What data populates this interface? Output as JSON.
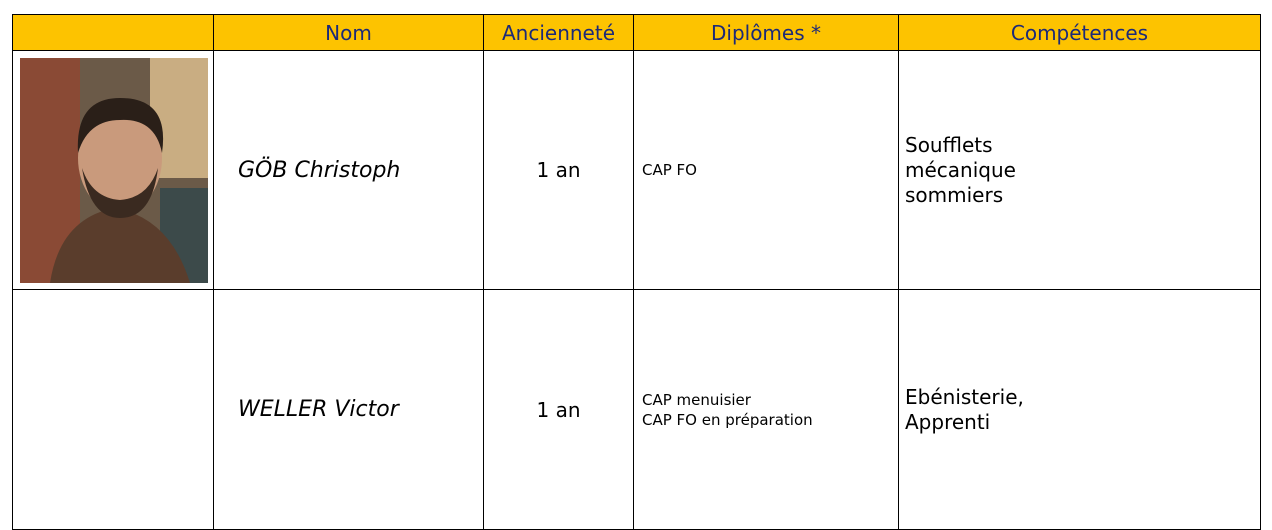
{
  "table": {
    "header": [
      "Nom",
      "Ancienneté",
      "Diplômes *",
      "Compétences"
    ],
    "rows": [
      {
        "nom": "GÖB Christoph",
        "anciennete": "1 an",
        "diplomes": [
          "CAP FO"
        ],
        "competences": [
          "Soufflets",
          "mécanique",
          "sommiers"
        ]
      },
      {
        "nom": "WELLER Victor",
        "anciennete": "1 an",
        "diplomes": [
          "CAP menuisier",
          "CAP FO en préparation"
        ],
        "competences": [
          "Ebénisterie,",
          "Apprenti"
        ]
      }
    ]
  }
}
